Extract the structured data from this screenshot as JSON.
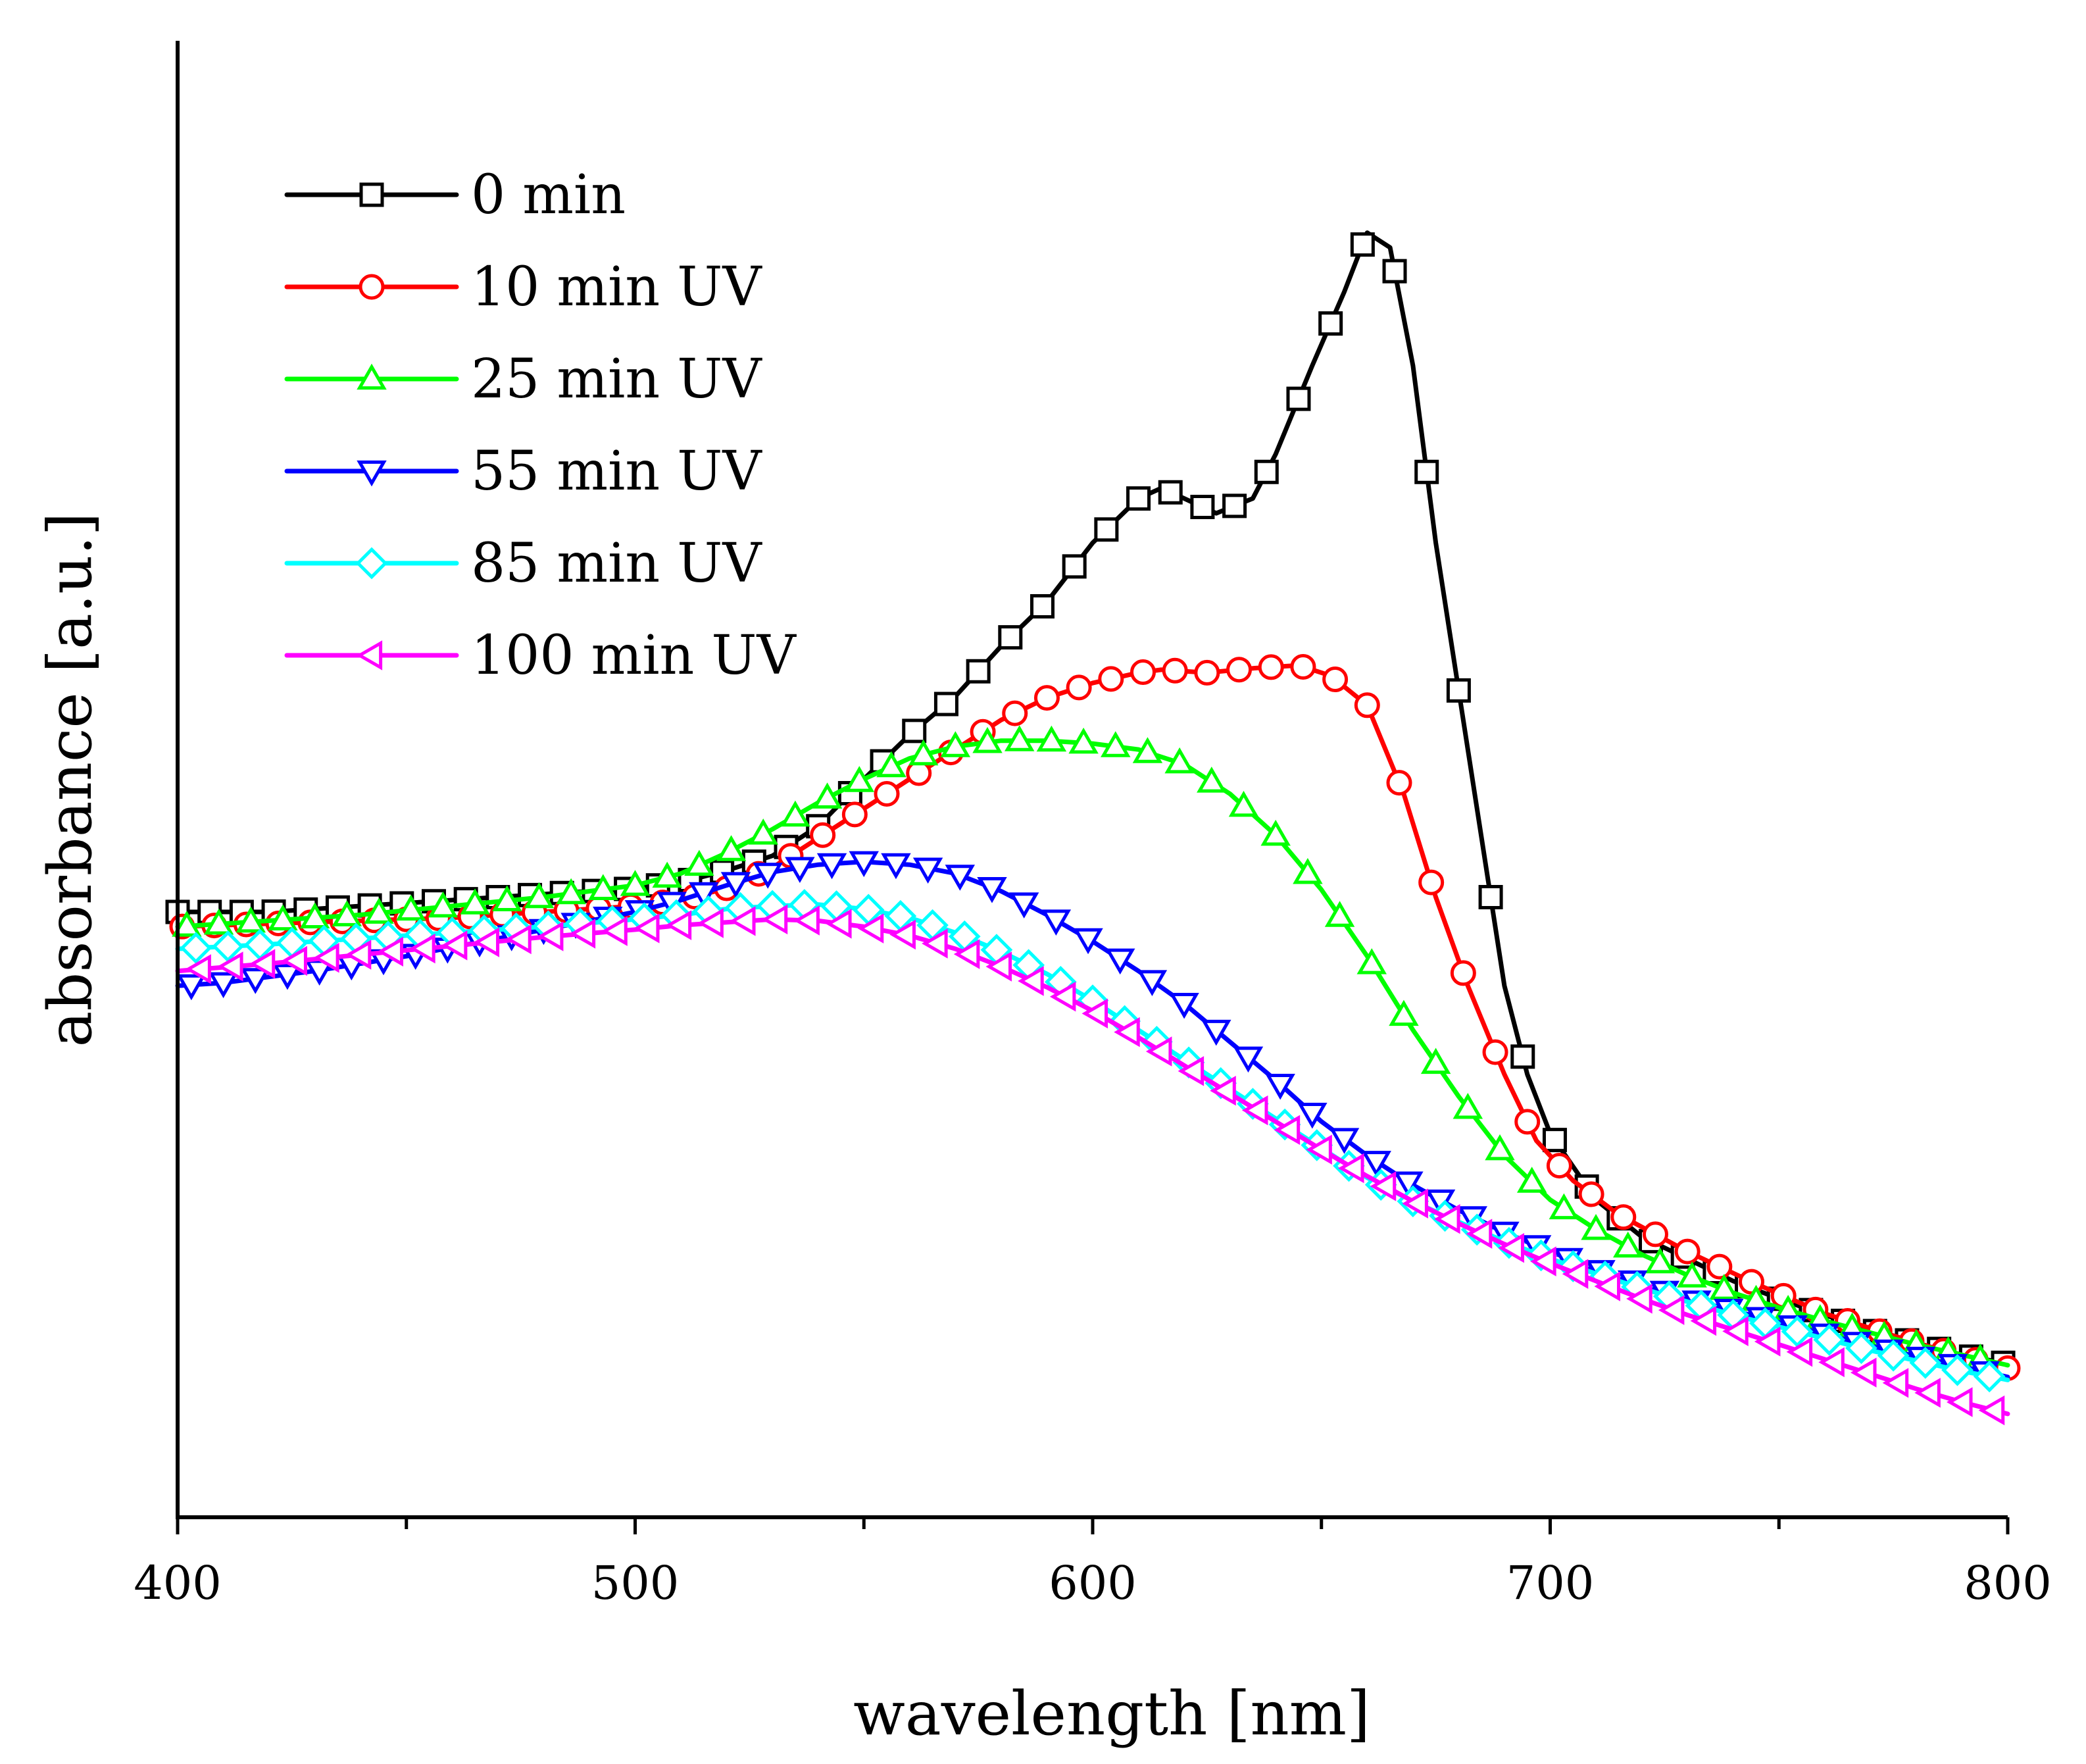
{
  "chart_data": {
    "type": "line",
    "title": "",
    "xlabel": "wavelength [nm]",
    "ylabel": "absorbance [a.u.]",
    "xlim": [
      400,
      800
    ],
    "ylim": [
      0,
      1.0
    ],
    "x_ticks": [
      "400",
      "500",
      "600",
      "700",
      "800"
    ],
    "y_ticks_shown": false,
    "legend_position": "top-left",
    "series": [
      {
        "name": "0 min",
        "color": "#000000",
        "marker": "square",
        "points": [
          [
            400,
            0.41
          ],
          [
            410,
            0.41
          ],
          [
            420,
            0.41
          ],
          [
            430,
            0.412
          ],
          [
            440,
            0.414
          ],
          [
            450,
            0.416
          ],
          [
            460,
            0.418
          ],
          [
            470,
            0.42
          ],
          [
            480,
            0.422
          ],
          [
            490,
            0.424
          ],
          [
            500,
            0.426
          ],
          [
            510,
            0.43
          ],
          [
            520,
            0.438
          ],
          [
            530,
            0.448
          ],
          [
            540,
            0.468
          ],
          [
            550,
            0.5
          ],
          [
            560,
            0.53
          ],
          [
            570,
            0.556
          ],
          [
            580,
            0.59
          ],
          [
            590,
            0.62
          ],
          [
            600,
            0.66
          ],
          [
            610,
            0.69
          ],
          [
            615,
            0.697
          ],
          [
            620,
            0.69
          ],
          [
            627,
            0.68
          ],
          [
            635,
            0.69
          ],
          [
            640,
            0.72
          ],
          [
            648,
            0.78
          ],
          [
            655,
            0.83
          ],
          [
            660,
            0.87
          ],
          [
            665,
            0.86
          ],
          [
            670,
            0.78
          ],
          [
            675,
            0.66
          ],
          [
            680,
            0.56
          ],
          [
            685,
            0.46
          ],
          [
            690,
            0.36
          ],
          [
            695,
            0.3
          ],
          [
            700,
            0.26
          ],
          [
            710,
            0.215
          ],
          [
            720,
            0.19
          ],
          [
            730,
            0.175
          ],
          [
            740,
            0.16
          ],
          [
            750,
            0.148
          ],
          [
            760,
            0.137
          ],
          [
            770,
            0.127
          ],
          [
            780,
            0.118
          ],
          [
            790,
            0.11
          ],
          [
            800,
            0.104
          ]
        ]
      },
      {
        "name": "10 min UV",
        "color": "#ff0000",
        "marker": "circle",
        "points": [
          [
            400,
            0.4
          ],
          [
            420,
            0.402
          ],
          [
            440,
            0.404
          ],
          [
            460,
            0.406
          ],
          [
            480,
            0.41
          ],
          [
            500,
            0.414
          ],
          [
            510,
            0.418
          ],
          [
            520,
            0.426
          ],
          [
            530,
            0.44
          ],
          [
            540,
            0.46
          ],
          [
            550,
            0.48
          ],
          [
            560,
            0.5
          ],
          [
            570,
            0.52
          ],
          [
            580,
            0.54
          ],
          [
            590,
            0.555
          ],
          [
            600,
            0.565
          ],
          [
            610,
            0.572
          ],
          [
            615,
            0.574
          ],
          [
            625,
            0.572
          ],
          [
            635,
            0.575
          ],
          [
            645,
            0.577
          ],
          [
            652,
            0.57
          ],
          [
            660,
            0.55
          ],
          [
            668,
            0.49
          ],
          [
            675,
            0.42
          ],
          [
            682,
            0.36
          ],
          [
            690,
            0.3
          ],
          [
            697,
            0.255
          ],
          [
            705,
            0.228
          ],
          [
            715,
            0.205
          ],
          [
            730,
            0.18
          ],
          [
            745,
            0.158
          ],
          [
            760,
            0.138
          ],
          [
            775,
            0.123
          ],
          [
            790,
            0.109
          ],
          [
            800,
            0.101
          ]
        ]
      },
      {
        "name": "25 min UV",
        "color": "#00ff00",
        "marker": "triangle-up",
        "points": [
          [
            400,
            0.4
          ],
          [
            420,
            0.404
          ],
          [
            440,
            0.408
          ],
          [
            460,
            0.414
          ],
          [
            480,
            0.42
          ],
          [
            500,
            0.428
          ],
          [
            510,
            0.436
          ],
          [
            520,
            0.45
          ],
          [
            530,
            0.466
          ],
          [
            540,
            0.484
          ],
          [
            550,
            0.5
          ],
          [
            560,
            0.514
          ],
          [
            570,
            0.522
          ],
          [
            580,
            0.526
          ],
          [
            590,
            0.526
          ],
          [
            600,
            0.524
          ],
          [
            610,
            0.52
          ],
          [
            620,
            0.51
          ],
          [
            630,
            0.49
          ],
          [
            640,
            0.462
          ],
          [
            650,
            0.425
          ],
          [
            660,
            0.38
          ],
          [
            670,
            0.33
          ],
          [
            680,
            0.285
          ],
          [
            690,
            0.245
          ],
          [
            700,
            0.215
          ],
          [
            710,
            0.195
          ],
          [
            720,
            0.178
          ],
          [
            730,
            0.164
          ],
          [
            740,
            0.152
          ],
          [
            750,
            0.142
          ],
          [
            760,
            0.133
          ],
          [
            770,
            0.125
          ],
          [
            780,
            0.117
          ],
          [
            790,
            0.11
          ],
          [
            800,
            0.103
          ]
        ]
      },
      {
        "name": "55 min UV",
        "color": "#0000ff",
        "marker": "triangle-down",
        "points": [
          [
            400,
            0.36
          ],
          [
            410,
            0.362
          ],
          [
            420,
            0.366
          ],
          [
            430,
            0.37
          ],
          [
            440,
            0.375
          ],
          [
            450,
            0.38
          ],
          [
            460,
            0.386
          ],
          [
            470,
            0.392
          ],
          [
            480,
            0.398
          ],
          [
            490,
            0.404
          ],
          [
            500,
            0.41
          ],
          [
            510,
            0.418
          ],
          [
            520,
            0.428
          ],
          [
            530,
            0.437
          ],
          [
            540,
            0.442
          ],
          [
            550,
            0.444
          ],
          [
            560,
            0.442
          ],
          [
            570,
            0.436
          ],
          [
            580,
            0.424
          ],
          [
            590,
            0.408
          ],
          [
            600,
            0.39
          ],
          [
            610,
            0.37
          ],
          [
            620,
            0.348
          ],
          [
            630,
            0.322
          ],
          [
            640,
            0.296
          ],
          [
            650,
            0.268
          ],
          [
            660,
            0.245
          ],
          [
            670,
            0.225
          ],
          [
            680,
            0.208
          ],
          [
            690,
            0.193
          ],
          [
            700,
            0.18
          ],
          [
            710,
            0.168
          ],
          [
            720,
            0.158
          ],
          [
            730,
            0.148
          ],
          [
            740,
            0.14
          ],
          [
            750,
            0.132
          ],
          [
            760,
            0.124
          ],
          [
            770,
            0.116
          ],
          [
            780,
            0.109
          ],
          [
            790,
            0.102
          ],
          [
            800,
            0.095
          ]
        ]
      },
      {
        "name": "85 min UV",
        "color": "#00ffff",
        "marker": "diamond",
        "points": [
          [
            400,
            0.385
          ],
          [
            420,
            0.388
          ],
          [
            440,
            0.392
          ],
          [
            460,
            0.396
          ],
          [
            480,
            0.4
          ],
          [
            500,
            0.405
          ],
          [
            510,
            0.408
          ],
          [
            520,
            0.412
          ],
          [
            530,
            0.414
          ],
          [
            540,
            0.415
          ],
          [
            550,
            0.412
          ],
          [
            560,
            0.406
          ],
          [
            570,
            0.396
          ],
          [
            580,
            0.383
          ],
          [
            590,
            0.368
          ],
          [
            600,
            0.35
          ],
          [
            610,
            0.33
          ],
          [
            620,
            0.31
          ],
          [
            630,
            0.29
          ],
          [
            640,
            0.27
          ],
          [
            650,
            0.25
          ],
          [
            660,
            0.23
          ],
          [
            670,
            0.214
          ],
          [
            680,
            0.2
          ],
          [
            690,
            0.187
          ],
          [
            700,
            0.175
          ],
          [
            710,
            0.165
          ],
          [
            720,
            0.155
          ],
          [
            730,
            0.146
          ],
          [
            740,
            0.137
          ],
          [
            750,
            0.129
          ],
          [
            760,
            0.121
          ],
          [
            770,
            0.113
          ],
          [
            780,
            0.106
          ],
          [
            790,
            0.099
          ],
          [
            800,
            0.093
          ]
        ]
      },
      {
        "name": "100 min UV",
        "color": "#ff00ff",
        "marker": "triangle-left",
        "points": [
          [
            400,
            0.37
          ],
          [
            420,
            0.375
          ],
          [
            440,
            0.381
          ],
          [
            460,
            0.387
          ],
          [
            480,
            0.393
          ],
          [
            500,
            0.398
          ],
          [
            510,
            0.401
          ],
          [
            520,
            0.403
          ],
          [
            530,
            0.405
          ],
          [
            540,
            0.404
          ],
          [
            550,
            0.4
          ],
          [
            560,
            0.394
          ],
          [
            570,
            0.385
          ],
          [
            580,
            0.373
          ],
          [
            590,
            0.359
          ],
          [
            600,
            0.343
          ],
          [
            610,
            0.325
          ],
          [
            620,
            0.306
          ],
          [
            630,
            0.287
          ],
          [
            640,
            0.268
          ],
          [
            650,
            0.249
          ],
          [
            660,
            0.231
          ],
          [
            670,
            0.214
          ],
          [
            680,
            0.199
          ],
          [
            690,
            0.185
          ],
          [
            700,
            0.172
          ],
          [
            710,
            0.16
          ],
          [
            720,
            0.148
          ],
          [
            730,
            0.137
          ],
          [
            740,
            0.127
          ],
          [
            750,
            0.117
          ],
          [
            760,
            0.107
          ],
          [
            770,
            0.097
          ],
          [
            780,
            0.087
          ],
          [
            790,
            0.078
          ],
          [
            800,
            0.07
          ]
        ]
      }
    ]
  }
}
